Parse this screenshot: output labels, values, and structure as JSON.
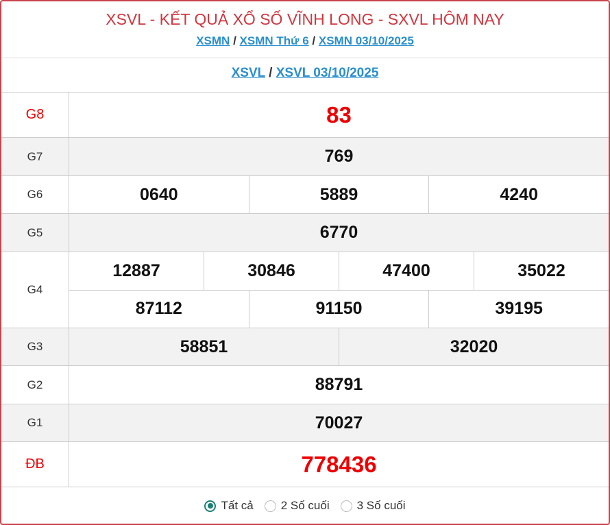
{
  "header": {
    "title": "XSVL - KẾT QUẢ XỔ SỐ VĨNH LONG - SXVL HÔM NAY",
    "breadcrumb": [
      {
        "label": "XSMN"
      },
      {
        "label": "XSMN Thứ 6"
      },
      {
        "label": "XSMN 03/10/2025"
      }
    ],
    "separator": "/",
    "sub_breadcrumb": [
      {
        "label": "XSVL"
      },
      {
        "label": "XSVL 03/10/2025"
      }
    ]
  },
  "prizes": [
    {
      "label": "G8",
      "lines": [
        [
          "83"
        ]
      ]
    },
    {
      "label": "G7",
      "lines": [
        [
          "769"
        ]
      ]
    },
    {
      "label": "G6",
      "lines": [
        [
          "0640",
          "5889",
          "4240"
        ]
      ]
    },
    {
      "label": "G5",
      "lines": [
        [
          "6770"
        ]
      ]
    },
    {
      "label": "G4",
      "lines": [
        [
          "12887",
          "30846",
          "47400",
          "35022"
        ],
        [
          "87112",
          "91150",
          "39195"
        ]
      ]
    },
    {
      "label": "G3",
      "lines": [
        [
          "58851",
          "32020"
        ]
      ]
    },
    {
      "label": "G2",
      "lines": [
        [
          "88791"
        ]
      ]
    },
    {
      "label": "G1",
      "lines": [
        [
          "70027"
        ]
      ]
    },
    {
      "label": "ĐB",
      "lines": [
        [
          "778436"
        ]
      ]
    }
  ],
  "filter": {
    "options": [
      {
        "label": "Tất cả",
        "selected": true
      },
      {
        "label": "2 Số cuối",
        "selected": false
      },
      {
        "label": "3 Số cuối",
        "selected": false
      }
    ]
  },
  "colors": {
    "accent_red": "#e00000",
    "link": "#2a8fcf",
    "radio": "#1a8077"
  }
}
